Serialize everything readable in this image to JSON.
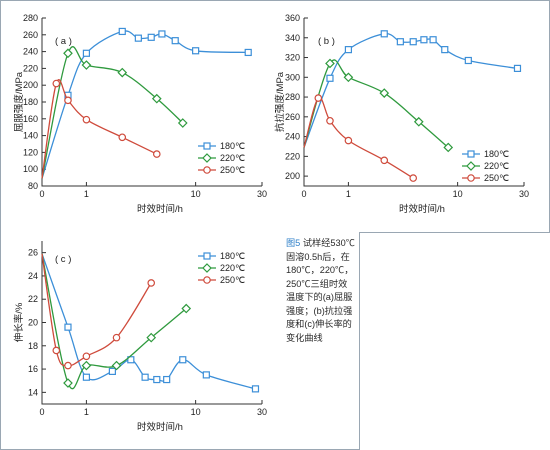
{
  "caption": {
    "figure_no": "图5",
    "text": " 试样经530℃固溶0.5h后，在180℃，220℃，250℃三组时效温度下的(a)屈服强度；(b)抗拉强度和(c)伸长率的变化曲线"
  },
  "colors": {
    "s180": "#3c8fd8",
    "s220": "#2f9a3e",
    "s250": "#cf4b3c",
    "frame": "#9aa7b3"
  },
  "chart_data": [
    {
      "type": "line",
      "tag": "( a )",
      "xlabel": "时效时间/h",
      "ylabel": "屈服强度/MPa",
      "xscale": "log(t+1)",
      "xticks": [
        "0",
        "1",
        "10",
        "30"
      ],
      "xlim": [
        0,
        30
      ],
      "ylim": [
        80,
        280
      ],
      "yticks": [
        "80",
        "100",
        "120",
        "140",
        "160",
        "180",
        "200",
        "220",
        "240",
        "260",
        "280"
      ],
      "legend_position": "bottom-right",
      "series": [
        {
          "name": "180℃",
          "marker": "square",
          "color": "#3c8fd8",
          "points": [
            [
              0.5,
              188
            ],
            [
              1,
              238
            ],
            [
              2.5,
              264
            ],
            [
              3.5,
              256
            ],
            [
              4.5,
              257
            ],
            [
              5.5,
              261
            ],
            [
              7,
              253
            ],
            [
              10,
              241
            ],
            [
              24,
              239
            ]
          ]
        },
        {
          "name": "220℃",
          "marker": "diamond",
          "color": "#2f9a3e",
          "points": [
            [
              0.5,
              238
            ],
            [
              1,
              224
            ],
            [
              2.5,
              215
            ],
            [
              5,
              184
            ],
            [
              8,
              155
            ]
          ]
        },
        {
          "name": "250℃",
          "marker": "circle",
          "color": "#cf4b3c",
          "points": [
            [
              0.25,
              202
            ],
            [
              0.5,
              182
            ],
            [
              1,
              159
            ],
            [
              2.5,
              138
            ],
            [
              5,
              118
            ]
          ]
        }
      ],
      "start_point": [
        0,
        89
      ]
    },
    {
      "type": "line",
      "tag": "( b )",
      "xlabel": "时效时间/h",
      "ylabel": "抗拉强度/MPa",
      "xscale": "log(t+1)",
      "xticks": [
        "0",
        "1",
        "10",
        "30"
      ],
      "xlim": [
        0,
        30
      ],
      "ylim": [
        190,
        360
      ],
      "yticks": [
        "200",
        "220",
        "240",
        "260",
        "280",
        "300",
        "320",
        "340",
        "360"
      ],
      "legend_position": "bottom-right",
      "series": [
        {
          "name": "180℃",
          "marker": "square",
          "color": "#3c8fd8",
          "points": [
            [
              0.5,
              299
            ],
            [
              1,
              328
            ],
            [
              2.5,
              344
            ],
            [
              3.5,
              336
            ],
            [
              4.5,
              336
            ],
            [
              5.5,
              338
            ],
            [
              6.5,
              338
            ],
            [
              8,
              328
            ],
            [
              12,
              317
            ],
            [
              27,
              309
            ]
          ]
        },
        {
          "name": "220℃",
          "marker": "diamond",
          "color": "#2f9a3e",
          "points": [
            [
              0.5,
              314
            ],
            [
              1,
              300
            ],
            [
              2.5,
              284
            ],
            [
              5,
              255
            ],
            [
              8.5,
              229
            ]
          ]
        },
        {
          "name": "250℃",
          "marker": "circle",
          "color": "#cf4b3c",
          "points": [
            [
              0.25,
              279
            ],
            [
              0.5,
              256
            ],
            [
              1,
              236
            ],
            [
              2.5,
              216
            ],
            [
              4.5,
              198
            ]
          ]
        }
      ],
      "start_point": [
        0,
        229
      ]
    },
    {
      "type": "line",
      "tag": "( c )",
      "xlabel": "时效时间/h",
      "ylabel": "伸长率/%",
      "xscale": "log(t+1)",
      "xticks": [
        "0",
        "1",
        "10",
        "30"
      ],
      "xlim": [
        0,
        30
      ],
      "ylim": [
        13,
        27
      ],
      "yticks": [
        "14",
        "16",
        "18",
        "20",
        "22",
        "24",
        "26"
      ],
      "legend_position": "top-right",
      "series": [
        {
          "name": "180℃",
          "marker": "square",
          "color": "#3c8fd8",
          "points": [
            [
              0.5,
              19.6
            ],
            [
              1,
              15.3
            ],
            [
              2,
              15.8
            ],
            [
              3,
              16.8
            ],
            [
              4,
              15.3
            ],
            [
              5,
              15.1
            ],
            [
              6,
              15.1
            ],
            [
              8,
              16.8
            ],
            [
              12,
              15.5
            ],
            [
              27,
              14.3
            ]
          ]
        },
        {
          "name": "220℃",
          "marker": "diamond",
          "color": "#2f9a3e",
          "points": [
            [
              0.5,
              14.8
            ],
            [
              1,
              16.3
            ],
            [
              2.2,
              16.3
            ],
            [
              4.5,
              18.7
            ],
            [
              8.5,
              21.2
            ]
          ]
        },
        {
          "name": "250℃",
          "marker": "circle",
          "color": "#cf4b3c",
          "points": [
            [
              0.25,
              17.6
            ],
            [
              0.5,
              16.3
            ],
            [
              1,
              17.1
            ],
            [
              2.2,
              18.7
            ],
            [
              4.5,
              23.4
            ]
          ]
        }
      ],
      "start_point": [
        0,
        25.9
      ]
    }
  ]
}
